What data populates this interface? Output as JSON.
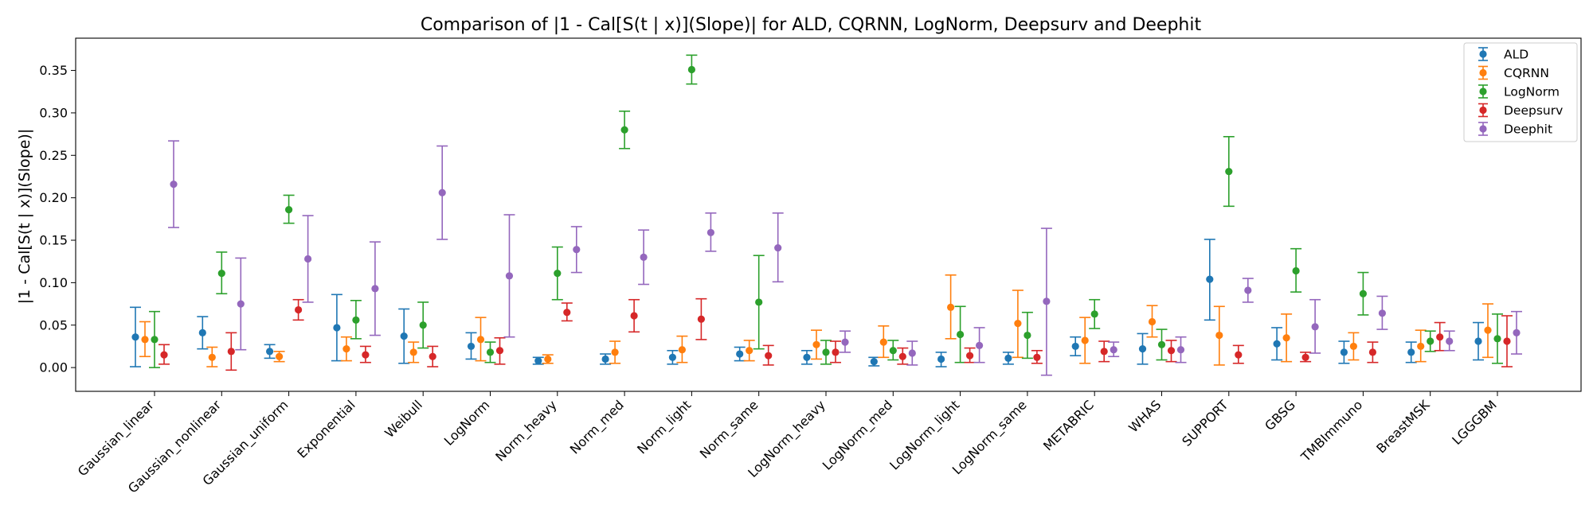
{
  "chart_data": {
    "type": "scatter",
    "title": "Comparison of |1 - Cal[S(t | x)](Slope)| for ALD, CQRNN, LogNorm, Deepsurv and Deephit",
    "xlabel": "",
    "ylabel": "|1 - Cal[S(t | x)](Slope)|",
    "ylim": [
      -0.028,
      0.388
    ],
    "yticks": [
      0.0,
      0.05,
      0.1,
      0.15,
      0.2,
      0.25,
      0.3,
      0.35
    ],
    "ytick_labels": [
      "0.00",
      "0.05",
      "0.10",
      "0.15",
      "0.20",
      "0.25",
      "0.30",
      "0.35"
    ],
    "legend_position": "top-right",
    "grid": false,
    "categories": [
      "Gaussian_linear",
      "Gaussian_nonlinear",
      "Gaussian_uniform",
      "Exponential",
      "Weibull",
      "LogNorm",
      "Norm_heavy",
      "Norm_med",
      "Norm_light",
      "Norm_same",
      "LogNorm_heavy",
      "LogNorm_med",
      "LogNorm_light",
      "LogNorm_same",
      "METABRIC",
      "WHAS",
      "SUPPORT",
      "GBSG",
      "TMBImmuno",
      "BreastMSK",
      "LGGGBM"
    ],
    "series": [
      {
        "name": "ALD",
        "color": "#1f77b4",
        "values": [
          0.036,
          0.041,
          0.019,
          0.047,
          0.037,
          0.025,
          0.008,
          0.01,
          0.012,
          0.016,
          0.012,
          0.007,
          0.01,
          0.011,
          0.025,
          0.022,
          0.104,
          0.028,
          0.018,
          0.018,
          0.031
        ],
        "lower": [
          0.001,
          0.022,
          0.011,
          0.008,
          0.005,
          0.01,
          0.004,
          0.004,
          0.004,
          0.008,
          0.004,
          0.002,
          0.001,
          0.004,
          0.014,
          0.004,
          0.056,
          0.009,
          0.005,
          0.006,
          0.009
        ],
        "upper": [
          0.071,
          0.06,
          0.027,
          0.086,
          0.069,
          0.041,
          0.012,
          0.016,
          0.02,
          0.024,
          0.02,
          0.012,
          0.018,
          0.018,
          0.036,
          0.04,
          0.151,
          0.047,
          0.031,
          0.03,
          0.053
        ]
      },
      {
        "name": "CQRNN",
        "color": "#ff7f0e",
        "values": [
          0.033,
          0.012,
          0.013,
          0.022,
          0.018,
          0.033,
          0.01,
          0.018,
          0.021,
          0.02,
          0.027,
          0.03,
          0.071,
          0.052,
          0.032,
          0.054,
          0.038,
          0.035,
          0.025,
          0.025,
          0.044
        ],
        "lower": [
          0.013,
          0.001,
          0.007,
          0.008,
          0.006,
          0.008,
          0.005,
          0.005,
          0.006,
          0.008,
          0.01,
          0.012,
          0.034,
          0.012,
          0.005,
          0.036,
          0.003,
          0.007,
          0.009,
          0.007,
          0.012
        ],
        "upper": [
          0.054,
          0.024,
          0.019,
          0.036,
          0.03,
          0.059,
          0.015,
          0.031,
          0.037,
          0.032,
          0.044,
          0.049,
          0.109,
          0.091,
          0.059,
          0.073,
          0.072,
          0.063,
          0.041,
          0.044,
          0.075
        ]
      },
      {
        "name": "LogNorm",
        "color": "#2ca02c",
        "values": [
          0.033,
          0.111,
          0.186,
          0.056,
          0.05,
          0.018,
          0.111,
          0.28,
          0.351,
          0.077,
          0.018,
          0.02,
          0.039,
          0.038,
          0.063,
          0.027,
          0.231,
          0.114,
          0.087,
          0.031,
          0.034
        ],
        "lower": [
          0.0,
          0.087,
          0.17,
          0.034,
          0.023,
          0.006,
          0.08,
          0.258,
          0.334,
          0.022,
          0.004,
          0.009,
          0.006,
          0.011,
          0.046,
          0.009,
          0.19,
          0.089,
          0.062,
          0.019,
          0.005
        ],
        "upper": [
          0.066,
          0.136,
          0.203,
          0.079,
          0.077,
          0.03,
          0.142,
          0.302,
          0.368,
          0.132,
          0.032,
          0.032,
          0.072,
          0.065,
          0.08,
          0.045,
          0.272,
          0.14,
          0.112,
          0.043,
          0.063
        ]
      },
      {
        "name": "Deepsurv",
        "color": "#d62728",
        "values": [
          0.015,
          0.019,
          0.068,
          0.015,
          0.013,
          0.02,
          0.065,
          0.061,
          0.057,
          0.014,
          0.018,
          0.013,
          0.014,
          0.012,
          0.019,
          0.02,
          0.015,
          0.012,
          0.018,
          0.036,
          0.031
        ],
        "lower": [
          0.004,
          -0.003,
          0.056,
          0.006,
          0.001,
          0.004,
          0.055,
          0.042,
          0.033,
          0.003,
          0.006,
          0.004,
          0.006,
          0.005,
          0.007,
          0.007,
          0.005,
          0.007,
          0.006,
          0.02,
          0.001
        ],
        "upper": [
          0.027,
          0.041,
          0.08,
          0.025,
          0.025,
          0.035,
          0.076,
          0.08,
          0.081,
          0.026,
          0.031,
          0.023,
          0.023,
          0.02,
          0.031,
          0.032,
          0.026,
          0.018,
          0.03,
          0.053,
          0.061
        ]
      },
      {
        "name": "Deephit",
        "color": "#9467bd",
        "values": [
          0.216,
          0.075,
          0.128,
          0.093,
          0.206,
          0.108,
          0.139,
          0.13,
          0.159,
          0.141,
          0.03,
          0.017,
          0.026,
          0.078,
          0.021,
          0.021,
          0.091,
          0.048,
          0.064,
          0.031,
          0.041
        ],
        "lower": [
          0.165,
          0.021,
          0.077,
          0.038,
          0.151,
          0.036,
          0.112,
          0.098,
          0.137,
          0.101,
          0.018,
          0.003,
          0.006,
          -0.009,
          0.013,
          0.006,
          0.077,
          0.017,
          0.045,
          0.02,
          0.016
        ],
        "upper": [
          0.267,
          0.129,
          0.179,
          0.148,
          0.261,
          0.18,
          0.166,
          0.162,
          0.182,
          0.182,
          0.043,
          0.031,
          0.047,
          0.164,
          0.03,
          0.036,
          0.105,
          0.08,
          0.084,
          0.043,
          0.066
        ]
      }
    ]
  }
}
